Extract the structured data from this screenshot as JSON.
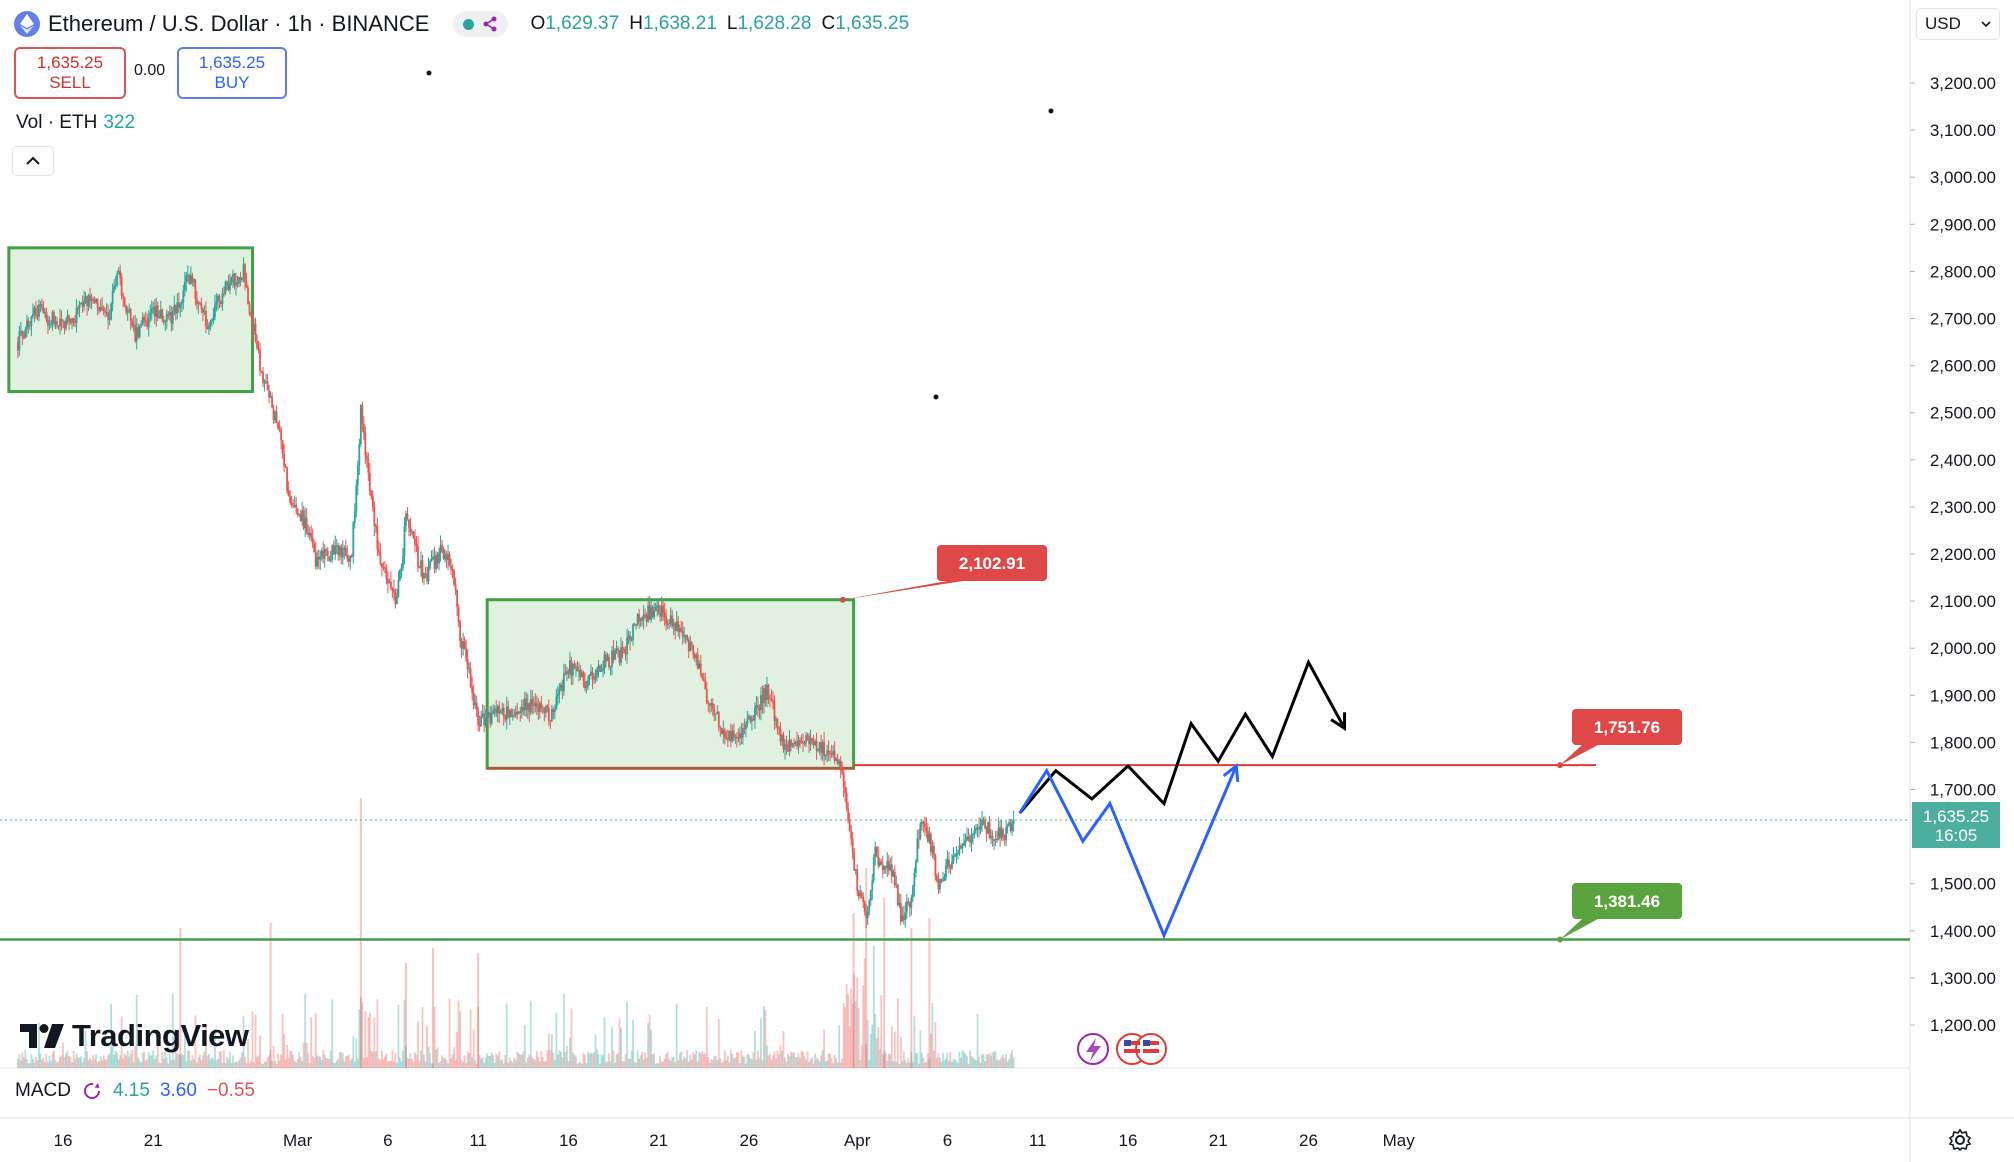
{
  "header": {
    "symbol_title": "Ethereum / U.S. Dollar · 1h · BINANCE",
    "ohlc": [
      {
        "label": "O",
        "value": "1,629.37"
      },
      {
        "label": "H",
        "value": "1,638.21"
      },
      {
        "label": "L",
        "value": "1,628.28"
      },
      {
        "label": "C",
        "value": "1,635.25"
      }
    ]
  },
  "trade": {
    "sell_price": "1,635.25",
    "sell_label": "SELL",
    "spread": "0.00",
    "buy_price": "1,635.25",
    "buy_label": "BUY"
  },
  "volume": {
    "label": "Vol · ETH",
    "value": "322"
  },
  "currency": {
    "label": "USD"
  },
  "brand": {
    "name": "TradingView"
  },
  "macd": {
    "label": "MACD",
    "v1": "4.15",
    "v2": "3.60",
    "v3": "−0.55"
  },
  "colors": {
    "up": "#26a69a",
    "down": "#ef5350",
    "zone_fill": "#dcefd9",
    "zone_border": "#43a047",
    "resistance": "#e53935",
    "support": "#43a047",
    "price_label": "#4cae9e",
    "projection_black": "#000000",
    "projection_blue": "#2962ff"
  },
  "chart_data": {
    "type": "candlestick",
    "timeframe": "1h",
    "y_axis": {
      "ticks": [
        "3,200.00",
        "3,100.00",
        "3,000.00",
        "2,900.00",
        "2,800.00",
        "2,700.00",
        "2,600.00",
        "2,500.00",
        "2,400.00",
        "2,300.00",
        "2,200.00",
        "2,100.00",
        "2,000.00",
        "1,900.00",
        "1,800.00",
        "1,700.00",
        "1,500.00",
        "1,400.00",
        "1,300.00",
        "1,200.00"
      ],
      "range": [
        1150,
        3250
      ]
    },
    "x_axis": {
      "ticks": [
        {
          "label": "16",
          "day": 0
        },
        {
          "label": "21",
          "day": 5
        },
        {
          "label": "Mar",
          "day": 13
        },
        {
          "label": "6",
          "day": 18
        },
        {
          "label": "11",
          "day": 23
        },
        {
          "label": "16",
          "day": 28
        },
        {
          "label": "21",
          "day": 33
        },
        {
          "label": "26",
          "day": 38
        },
        {
          "label": "Apr",
          "day": 44
        },
        {
          "label": "6",
          "day": 49
        },
        {
          "label": "11",
          "day": 54
        },
        {
          "label": "16",
          "day": 59
        },
        {
          "label": "21",
          "day": 64
        },
        {
          "label": "26",
          "day": 69
        },
        {
          "label": "May",
          "day": 74
        }
      ]
    },
    "price_path": [
      [
        -2.5,
        2650
      ],
      [
        -1.5,
        2720
      ],
      [
        0,
        2680
      ],
      [
        1.5,
        2740
      ],
      [
        2.5,
        2700
      ],
      [
        3,
        2800
      ],
      [
        4,
        2660
      ],
      [
        5,
        2720
      ],
      [
        6,
        2700
      ],
      [
        7,
        2790
      ],
      [
        8,
        2690
      ],
      [
        9,
        2760
      ],
      [
        10,
        2800
      ],
      [
        11,
        2580
      ],
      [
        12,
        2460
      ],
      [
        12.5,
        2330
      ],
      [
        13.5,
        2260
      ],
      [
        14,
        2180
      ],
      [
        15,
        2210
      ],
      [
        16,
        2200
      ],
      [
        16.5,
        2500
      ],
      [
        17,
        2340
      ],
      [
        17.5,
        2200
      ],
      [
        18.5,
        2100
      ],
      [
        19,
        2270
      ],
      [
        20,
        2150
      ],
      [
        21,
        2210
      ],
      [
        21.5,
        2180
      ],
      [
        22,
        2030
      ],
      [
        23,
        1850
      ],
      [
        24,
        1860
      ],
      [
        25,
        1870
      ],
      [
        26,
        1880
      ],
      [
        27,
        1860
      ],
      [
        28,
        1960
      ],
      [
        29,
        1930
      ],
      [
        30,
        1970
      ],
      [
        31,
        1990
      ],
      [
        32,
        2070
      ],
      [
        33,
        2080
      ],
      [
        34,
        2040
      ],
      [
        35,
        1980
      ],
      [
        36,
        1860
      ],
      [
        37,
        1810
      ],
      [
        38,
        1840
      ],
      [
        39,
        1910
      ],
      [
        40,
        1790
      ],
      [
        41,
        1800
      ],
      [
        42,
        1790
      ],
      [
        43,
        1770
      ],
      [
        43.5,
        1640
      ],
      [
        44,
        1490
      ],
      [
        44.5,
        1430
      ],
      [
        45,
        1560
      ],
      [
        46,
        1520
      ],
      [
        46.5,
        1420
      ],
      [
        47,
        1470
      ],
      [
        47.5,
        1640
      ],
      [
        48,
        1600
      ],
      [
        48.5,
        1490
      ],
      [
        49,
        1540
      ],
      [
        50,
        1580
      ],
      [
        51,
        1620
      ],
      [
        52,
        1600
      ],
      [
        52.7,
        1635.25
      ]
    ],
    "current_price": {
      "value": "1,635.25",
      "countdown": "16:05"
    },
    "zones": [
      {
        "start_day": -3,
        "end_day": 10.5,
        "low": 2545,
        "high": 2850
      },
      {
        "start_day": 23.5,
        "end_day": 43.8,
        "low": 1745,
        "high": 2102.91
      }
    ],
    "levels": [
      {
        "label": "2,102.91",
        "value": 2102.91,
        "color": "red"
      },
      {
        "label": "1,751.76",
        "value": 1751.76,
        "color": "red"
      },
      {
        "label": "1,381.46",
        "value": 1381.46,
        "color": "green"
      }
    ],
    "projections": [
      {
        "color": "black",
        "points": [
          [
            53,
            1650
          ],
          [
            55,
            1740
          ],
          [
            57,
            1680
          ],
          [
            59,
            1750
          ],
          [
            61,
            1670
          ],
          [
            62.5,
            1840
          ],
          [
            64,
            1760
          ],
          [
            65.5,
            1860
          ],
          [
            67,
            1770
          ],
          [
            69,
            1970
          ],
          [
            71,
            1830
          ]
        ]
      },
      {
        "color": "blue",
        "points": [
          [
            53,
            1650
          ],
          [
            54.5,
            1740
          ],
          [
            56.5,
            1590
          ],
          [
            58,
            1670
          ],
          [
            61,
            1390
          ],
          [
            65,
            1750
          ]
        ]
      }
    ],
    "volume_note": "volume histogram bars along bottom of price pane"
  }
}
